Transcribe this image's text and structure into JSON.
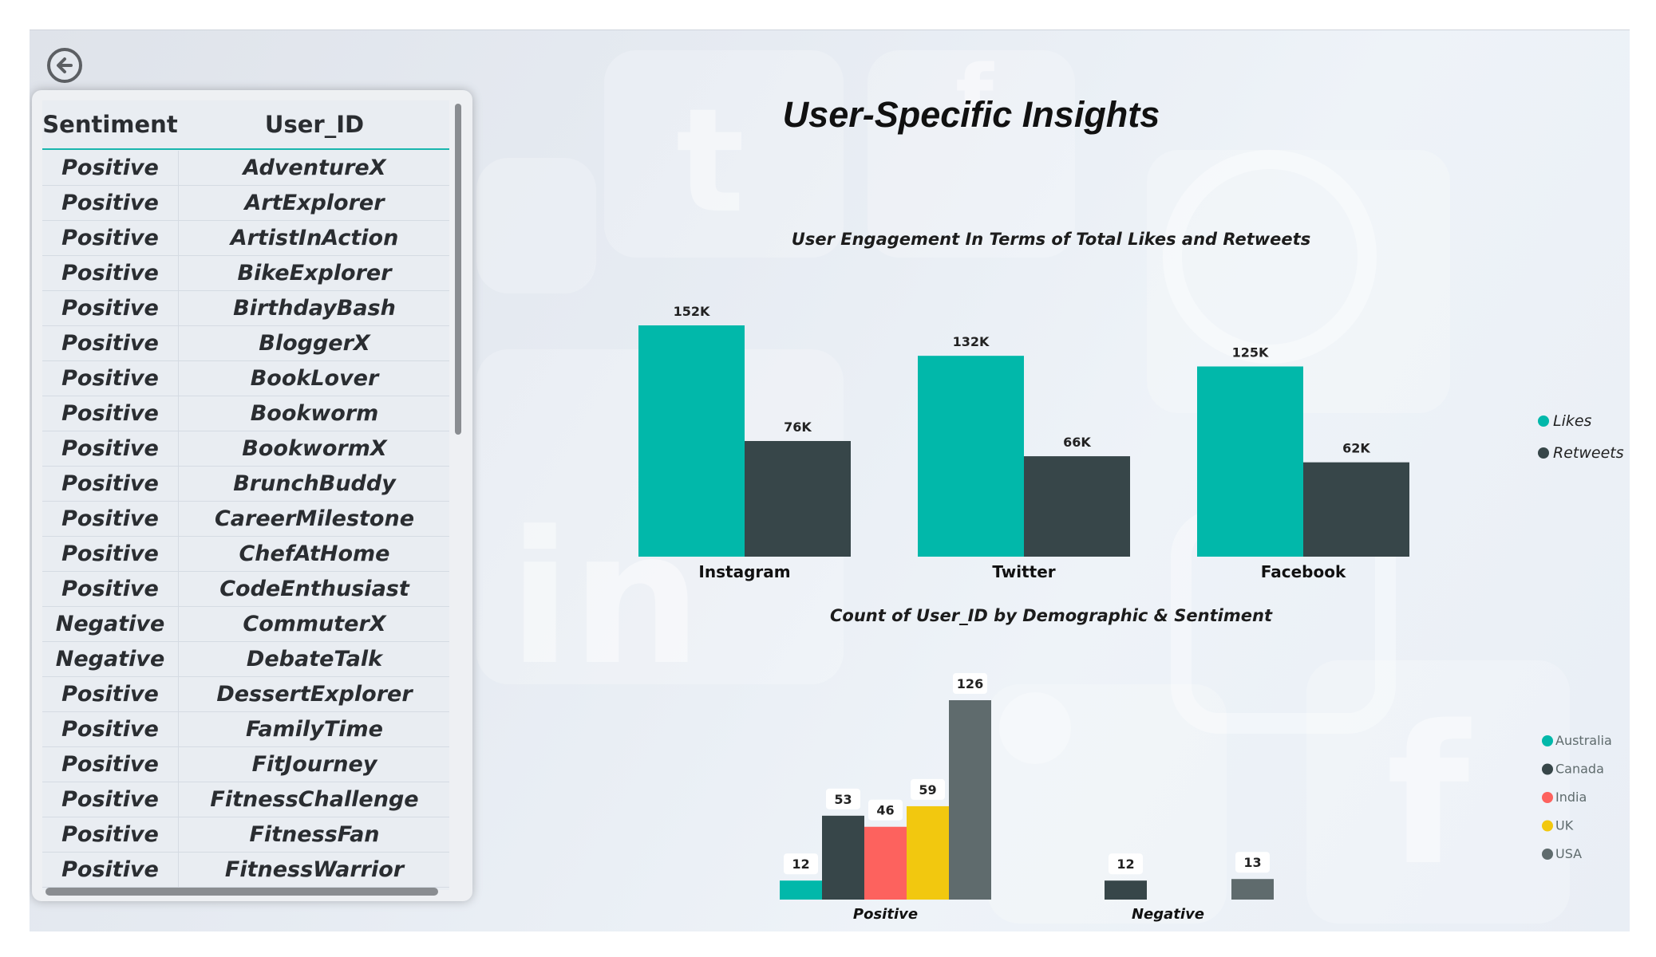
{
  "page": {
    "title": "User-Specific Insights"
  },
  "colors": {
    "teal": "#01b8aa",
    "dark": "#374649",
    "red": "#fd625e",
    "yellow": "#f2c80f",
    "gray": "#5f6b6d"
  },
  "table": {
    "headers": {
      "sentiment": "Sentiment",
      "user_id": "User_ID"
    },
    "rows": [
      {
        "sentiment": "Positive",
        "user_id": "AdventureX"
      },
      {
        "sentiment": "Positive",
        "user_id": "ArtExplorer"
      },
      {
        "sentiment": "Positive",
        "user_id": "ArtistInAction"
      },
      {
        "sentiment": "Positive",
        "user_id": "BikeExplorer"
      },
      {
        "sentiment": "Positive",
        "user_id": "BirthdayBash"
      },
      {
        "sentiment": "Positive",
        "user_id": "BloggerX"
      },
      {
        "sentiment": "Positive",
        "user_id": "BookLover"
      },
      {
        "sentiment": "Positive",
        "user_id": "Bookworm"
      },
      {
        "sentiment": "Positive",
        "user_id": "BookwormX"
      },
      {
        "sentiment": "Positive",
        "user_id": "BrunchBuddy"
      },
      {
        "sentiment": "Positive",
        "user_id": "CareerMilestone"
      },
      {
        "sentiment": "Positive",
        "user_id": "ChefAtHome"
      },
      {
        "sentiment": "Positive",
        "user_id": "CodeEnthusiast"
      },
      {
        "sentiment": "Negative",
        "user_id": "CommuterX"
      },
      {
        "sentiment": "Negative",
        "user_id": "DebateTalk"
      },
      {
        "sentiment": "Positive",
        "user_id": "DessertExplorer"
      },
      {
        "sentiment": "Positive",
        "user_id": "FamilyTime"
      },
      {
        "sentiment": "Positive",
        "user_id": "FitJourney"
      },
      {
        "sentiment": "Positive",
        "user_id": "FitnessChallenge"
      },
      {
        "sentiment": "Positive",
        "user_id": "FitnessFan"
      },
      {
        "sentiment": "Positive",
        "user_id": "FitnessWarrior"
      }
    ]
  },
  "chart_data": [
    {
      "type": "bar",
      "title": "User Engagement In Terms of  Total Likes and Retweets",
      "categories": [
        "Instagram",
        "Twitter",
        "Facebook"
      ],
      "series": [
        {
          "name": "Likes",
          "values": [
            152000,
            132000,
            125000
          ],
          "labels": [
            "152K",
            "132K",
            "125K"
          ],
          "color": "#01b8aa"
        },
        {
          "name": "Retweets",
          "values": [
            76000,
            66000,
            62000
          ],
          "labels": [
            "76K",
            "66K",
            "62K"
          ],
          "color": "#374649"
        }
      ],
      "legend": "right"
    },
    {
      "type": "bar",
      "title": "Count of User_ID by Demographic & Sentiment",
      "categories": [
        "Positive",
        "Negative"
      ],
      "series": [
        {
          "name": "Australia",
          "values": [
            12,
            null
          ],
          "color": "#01b8aa"
        },
        {
          "name": "Canada",
          "values": [
            53,
            12
          ],
          "color": "#374649"
        },
        {
          "name": "India",
          "values": [
            46,
            null
          ],
          "color": "#fd625e"
        },
        {
          "name": "UK",
          "values": [
            59,
            null
          ],
          "color": "#f2c80f"
        },
        {
          "name": "USA",
          "values": [
            126,
            13
          ],
          "color": "#5f6b6d"
        }
      ],
      "legend": "right"
    }
  ]
}
